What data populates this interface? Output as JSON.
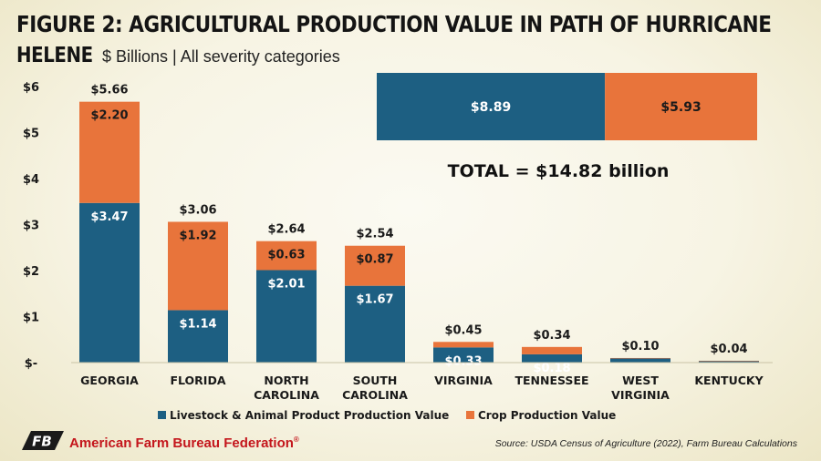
{
  "title": {
    "line1": "FIGURE 2: AGRICULTURAL PRODUCTION VALUE IN PATH OF HURRICANE",
    "line2": "HELENE",
    "subtitle": "$ Billions | All severity categories"
  },
  "colors": {
    "livestock": "#1d5f82",
    "crop": "#e8743b",
    "text": "#1a1a1a"
  },
  "chart_data": {
    "type": "bar",
    "stacked": true,
    "categories": [
      [
        "GEORGIA"
      ],
      [
        "FLORIDA"
      ],
      [
        "NORTH",
        "CAROLINA"
      ],
      [
        "SOUTH",
        "CAROLINA"
      ],
      [
        "VIRGINIA"
      ],
      [
        "TENNESSEE"
      ],
      [
        "WEST",
        "VIRGINIA"
      ],
      [
        "KENTUCKY"
      ]
    ],
    "series": [
      {
        "name": "Livestock & Animal Product Production Value",
        "key": "livestock",
        "values": [
          3.47,
          1.14,
          2.01,
          1.67,
          0.33,
          0.18,
          0.09,
          0.03
        ],
        "labels": [
          "$3.47",
          "$1.14",
          "$2.01",
          "$1.67",
          "$0.33",
          "$0.18",
          null,
          null
        ]
      },
      {
        "name": "Crop Production Value",
        "key": "crop",
        "values": [
          2.2,
          1.92,
          0.63,
          0.87,
          0.12,
          0.16,
          0.01,
          0.01
        ],
        "labels": [
          "$2.20",
          "$1.92",
          "$0.63",
          "$0.87",
          null,
          null,
          null,
          null
        ]
      }
    ],
    "totals": [
      "$5.66",
      "$3.06",
      "$2.64",
      "$2.54",
      "$0.45",
      "$0.34",
      "$0.10",
      "$0.04"
    ],
    "totals_values": [
      5.66,
      3.06,
      2.64,
      2.54,
      0.45,
      0.34,
      0.1,
      0.04
    ],
    "yticks": [
      {
        "value": 0,
        "label": "$-"
      },
      {
        "value": 1,
        "label": "$1"
      },
      {
        "value": 2,
        "label": "$2"
      },
      {
        "value": 3,
        "label": "$3"
      },
      {
        "value": 4,
        "label": "$4"
      },
      {
        "value": 5,
        "label": "$5"
      },
      {
        "value": 6,
        "label": "$6"
      }
    ],
    "ylim": [
      0,
      6
    ],
    "grid": false,
    "legend_position": "bottom",
    "summary_bar": {
      "livestock_value": 8.89,
      "livestock_label": "$8.89",
      "crop_value": 5.93,
      "crop_label": "$5.93",
      "total_label": "TOTAL = $14.82 billion"
    }
  },
  "footer": {
    "logo_text": "FB",
    "org_name": "American Farm Bureau Federation",
    "registered": "®",
    "source": "Source: USDA Census of Agriculture (2022), Farm Bureau Calculations"
  }
}
